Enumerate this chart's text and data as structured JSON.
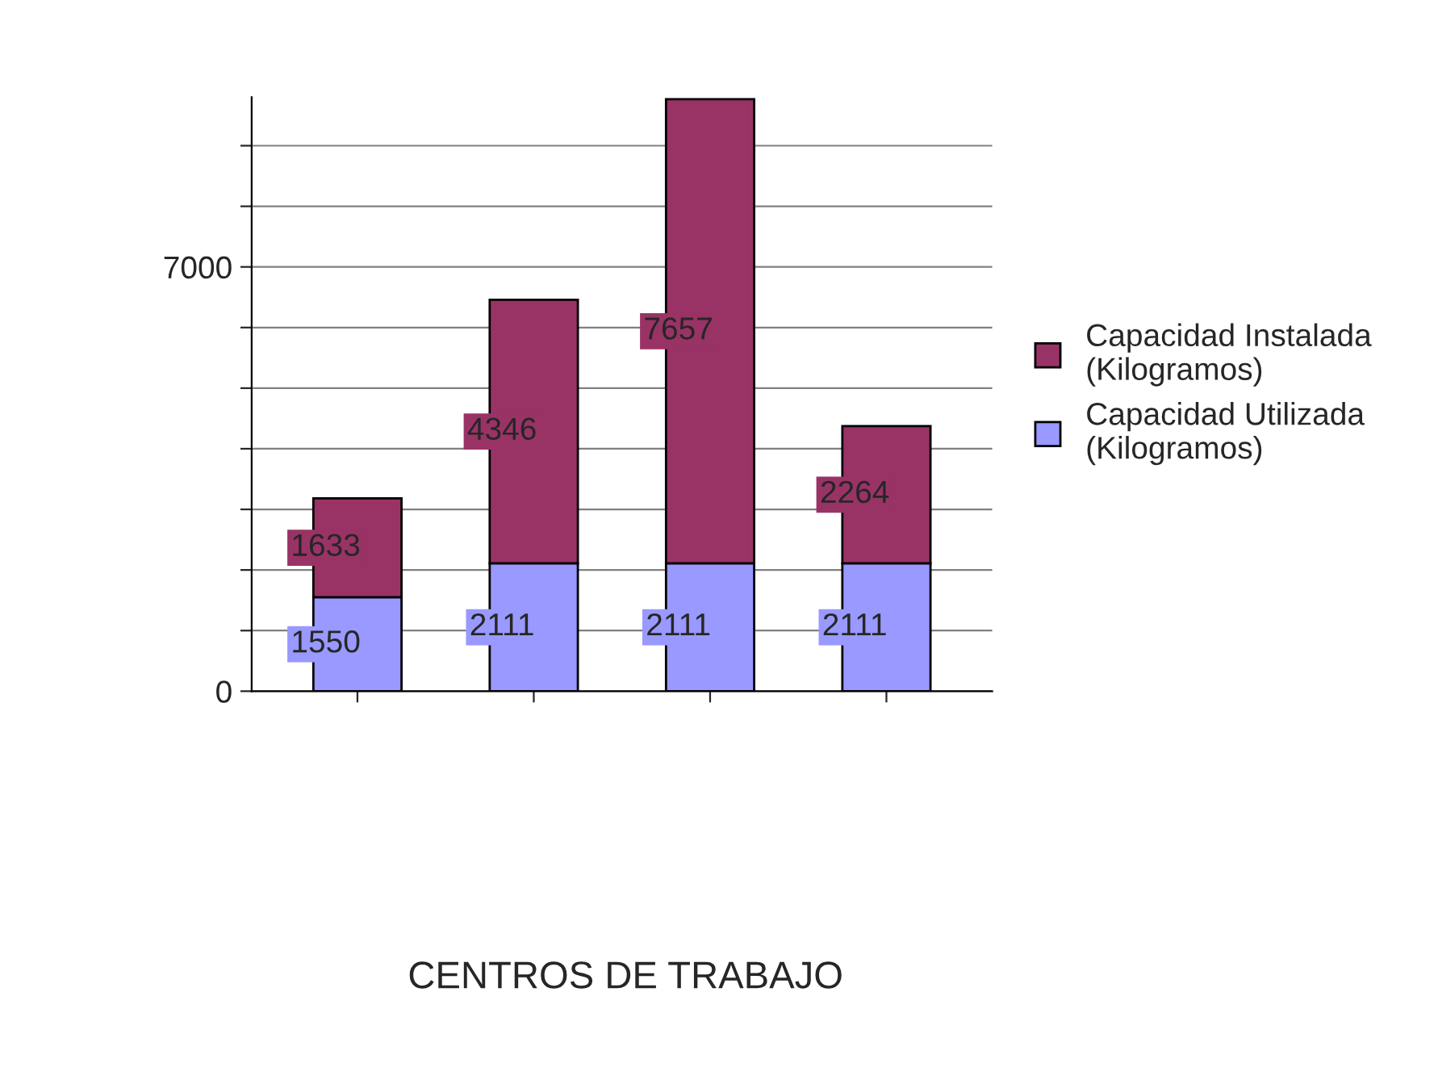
{
  "chart_data": {
    "type": "bar",
    "stacked": true,
    "annotations": [
      "CENTROS DE TRABAJO"
    ],
    "categories": [
      null,
      null,
      null,
      null
    ],
    "series": [
      {
        "name": "Capacidad Utilizada (Kilogramos)",
        "color": "#9999ff",
        "values": [
          1550,
          2111,
          2111,
          2111
        ]
      },
      {
        "name": "Capacidad Instalada (Kilogramos)",
        "color": "#993366",
        "values": [
          1633,
          4346,
          7657,
          2264
        ]
      }
    ],
    "ylim": [
      0,
      9800
    ],
    "yticks": [
      0,
      {
        "value": 1000,
        "label": null
      },
      {
        "value": 2000,
        "label": null
      },
      {
        "value": 3000,
        "label": null
      },
      {
        "value": 4000,
        "label": null
      },
      {
        "value": 5000,
        "label": null
      },
      {
        "value": 6000,
        "label": null
      },
      7000,
      {
        "value": 8000,
        "label": null
      },
      {
        "value": 9000,
        "label": null
      }
    ],
    "grid": "y",
    "legend": "right",
    "data_labels": true
  }
}
